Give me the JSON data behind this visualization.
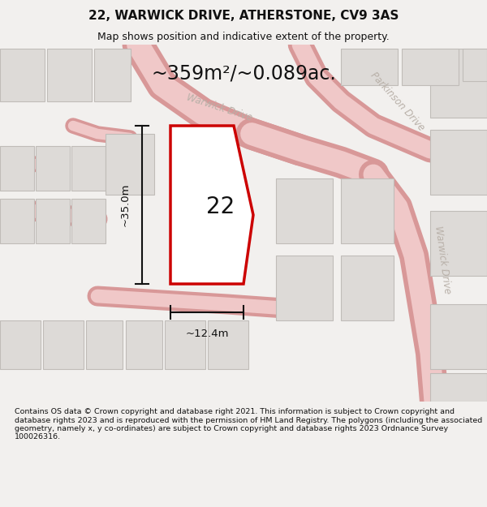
{
  "title": "22, WARWICK DRIVE, ATHERSTONE, CV9 3AS",
  "subtitle": "Map shows position and indicative extent of the property.",
  "area_text": "~359m²/~0.089ac.",
  "label_22": "22",
  "dim_vertical": "~35.0m",
  "dim_horizontal": "~12.4m",
  "footer": "Contains OS data © Crown copyright and database right 2021. This information is subject to Crown copyright and database rights 2023 and is reproduced with the permission of HM Land Registry. The polygons (including the associated geometry, namely x, y co-ordinates) are subject to Crown copyright and database rights 2023 Ordnance Survey 100026316.",
  "bg_color": "#f2f0ee",
  "map_bg": "#eeebe8",
  "road_fill": "#f0c8c8",
  "road_edge": "#d89898",
  "building_fill": "#dddad7",
  "building_edge": "#c0bcb8",
  "plot_fill": "#ffffff",
  "plot_edge": "#cc0000",
  "road_label_color": "#b8b0a8",
  "dim_color": "#111111",
  "title_color": "#111111",
  "footer_color": "#111111"
}
